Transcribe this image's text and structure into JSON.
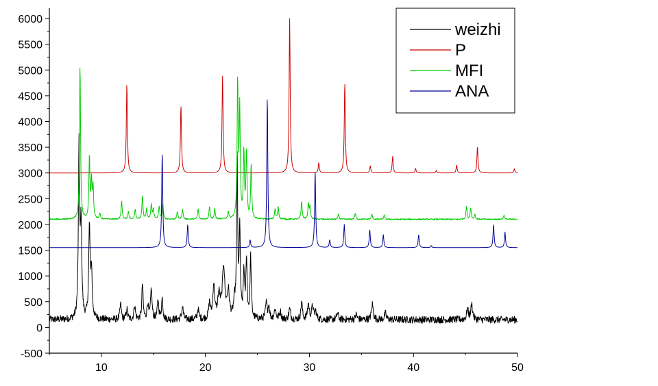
{
  "chart_data": {
    "type": "line",
    "title": "",
    "xlabel": "",
    "ylabel": "",
    "xlim": [
      5,
      50
    ],
    "ylim": [
      -500,
      6200
    ],
    "xticks": [
      10,
      20,
      30,
      40,
      50
    ],
    "yticks": [
      -500,
      0,
      500,
      1000,
      1500,
      2000,
      2500,
      3000,
      3500,
      4000,
      4500,
      5000,
      5500,
      6000
    ],
    "grid": false,
    "legend_position": "top-right",
    "series": [
      {
        "name": "weizhi",
        "color": "#000000",
        "baseline": 150,
        "noise": 70,
        "peaks": [
          [
            7.85,
            3350,
            0.07
          ],
          [
            8.05,
            1800,
            0.08
          ],
          [
            8.85,
            1750,
            0.08
          ],
          [
            9.05,
            900,
            0.08
          ],
          [
            11.85,
            300,
            0.08
          ],
          [
            12.45,
            200,
            0.08
          ],
          [
            13.2,
            280,
            0.08
          ],
          [
            13.95,
            700,
            0.07
          ],
          [
            14.45,
            300,
            0.08
          ],
          [
            14.8,
            600,
            0.08
          ],
          [
            15.45,
            380,
            0.08
          ],
          [
            15.85,
            400,
            0.08
          ],
          [
            17.8,
            250,
            0.09
          ],
          [
            19.3,
            200,
            0.09
          ],
          [
            20.4,
            300,
            0.1
          ],
          [
            20.8,
            650,
            0.1
          ],
          [
            21.3,
            450,
            0.15
          ],
          [
            21.75,
            1000,
            0.14
          ],
          [
            22.2,
            500,
            0.13
          ],
          [
            22.8,
            300,
            0.1
          ],
          [
            23.05,
            3150,
            0.06
          ],
          [
            23.3,
            1700,
            0.07
          ],
          [
            23.7,
            900,
            0.07
          ],
          [
            23.95,
            1150,
            0.07
          ],
          [
            24.35,
            1200,
            0.07
          ],
          [
            25.85,
            300,
            0.09
          ],
          [
            26.1,
            250,
            0.09
          ],
          [
            26.7,
            200,
            0.1
          ],
          [
            27.2,
            150,
            0.1
          ],
          [
            28.1,
            200,
            0.1
          ],
          [
            29.25,
            350,
            0.08
          ],
          [
            29.9,
            300,
            0.1
          ],
          [
            30.3,
            250,
            0.1
          ],
          [
            30.6,
            150,
            0.1
          ],
          [
            32.7,
            120,
            0.1
          ],
          [
            34.5,
            100,
            0.1
          ],
          [
            36.05,
            300,
            0.1
          ],
          [
            37.3,
            120,
            0.1
          ],
          [
            45.2,
            200,
            0.1
          ],
          [
            45.6,
            300,
            0.1
          ]
        ]
      },
      {
        "name": "P",
        "color": "#cc0000",
        "baseline": 3000,
        "noise": 0,
        "peaks": [
          [
            12.45,
            1750,
            0.06
          ],
          [
            17.65,
            1320,
            0.06
          ],
          [
            21.65,
            1880,
            0.06
          ],
          [
            28.1,
            3000,
            0.06
          ],
          [
            30.9,
            200,
            0.06
          ],
          [
            33.4,
            1770,
            0.06
          ],
          [
            35.85,
            140,
            0.06
          ],
          [
            38.0,
            320,
            0.06
          ],
          [
            40.2,
            90,
            0.06
          ],
          [
            42.2,
            50,
            0.06
          ],
          [
            44.15,
            150,
            0.06
          ],
          [
            46.15,
            510,
            0.06
          ],
          [
            49.7,
            80,
            0.06
          ]
        ]
      },
      {
        "name": "MFI",
        "color": "#00cc00",
        "baseline": 2100,
        "noise": 12,
        "peaks": [
          [
            7.95,
            3000,
            0.06
          ],
          [
            8.85,
            1200,
            0.06
          ],
          [
            9.05,
            700,
            0.06
          ],
          [
            9.2,
            600,
            0.06
          ],
          [
            9.85,
            120,
            0.06
          ],
          [
            11.95,
            350,
            0.06
          ],
          [
            12.6,
            150,
            0.06
          ],
          [
            13.25,
            200,
            0.06
          ],
          [
            13.95,
            450,
            0.06
          ],
          [
            14.35,
            200,
            0.06
          ],
          [
            14.8,
            300,
            0.06
          ],
          [
            15.0,
            200,
            0.06
          ],
          [
            15.55,
            250,
            0.06
          ],
          [
            15.9,
            300,
            0.06
          ],
          [
            17.3,
            150,
            0.06
          ],
          [
            17.8,
            200,
            0.06
          ],
          [
            19.3,
            200,
            0.06
          ],
          [
            20.4,
            250,
            0.06
          ],
          [
            20.9,
            200,
            0.06
          ],
          [
            22.2,
            150,
            0.06
          ],
          [
            23.1,
            2650,
            0.06
          ],
          [
            23.3,
            2100,
            0.06
          ],
          [
            23.7,
            1300,
            0.06
          ],
          [
            23.95,
            1300,
            0.06
          ],
          [
            24.4,
            1050,
            0.06
          ],
          [
            26.7,
            200,
            0.06
          ],
          [
            27.0,
            250,
            0.06
          ],
          [
            29.25,
            350,
            0.06
          ],
          [
            29.9,
            300,
            0.06
          ],
          [
            30.05,
            250,
            0.06
          ],
          [
            32.8,
            100,
            0.06
          ],
          [
            34.4,
            120,
            0.06
          ],
          [
            36.0,
            100,
            0.06
          ],
          [
            37.2,
            80,
            0.06
          ],
          [
            45.1,
            250,
            0.06
          ],
          [
            45.5,
            220,
            0.06
          ],
          [
            45.9,
            100,
            0.06
          ],
          [
            48.7,
            80,
            0.06
          ]
        ]
      },
      {
        "name": "ANA",
        "color": "#000099",
        "baseline": 1550,
        "noise": 0,
        "peaks": [
          [
            15.85,
            1850,
            0.06
          ],
          [
            18.3,
            450,
            0.06
          ],
          [
            24.3,
            150,
            0.06
          ],
          [
            25.95,
            2950,
            0.06
          ],
          [
            30.55,
            1500,
            0.06
          ],
          [
            31.95,
            150,
            0.06
          ],
          [
            33.35,
            450,
            0.06
          ],
          [
            35.8,
            350,
            0.06
          ],
          [
            37.1,
            250,
            0.06
          ],
          [
            40.5,
            250,
            0.06
          ],
          [
            41.7,
            40,
            0.06
          ],
          [
            47.7,
            450,
            0.06
          ],
          [
            48.8,
            300,
            0.06
          ]
        ]
      }
    ]
  }
}
